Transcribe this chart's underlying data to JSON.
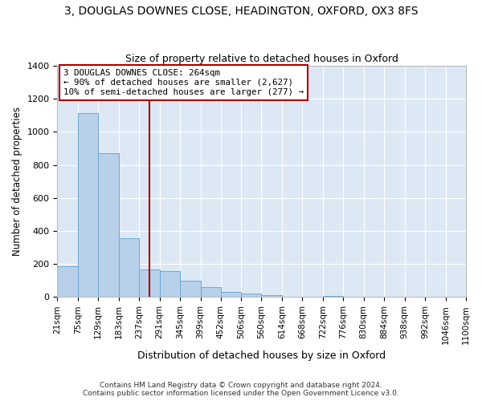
{
  "title": "3, DOUGLAS DOWNES CLOSE, HEADINGTON, OXFORD, OX3 8FS",
  "subtitle": "Size of property relative to detached houses in Oxford",
  "xlabel": "Distribution of detached houses by size in Oxford",
  "ylabel": "Number of detached properties",
  "bar_color": "#b8d0ea",
  "bar_edge_color": "#6aaad4",
  "background_color": "#dce9f5",
  "grid_color": "#ffffff",
  "vline_x": 264,
  "vline_color": "#aa0000",
  "annotation_text": "3 DOUGLAS DOWNES CLOSE: 264sqm\n← 90% of detached houses are smaller (2,627)\n10% of semi-detached houses are larger (277) →",
  "annotation_color": "#aa0000",
  "footer": "Contains HM Land Registry data © Crown copyright and database right 2024.\nContains public sector information licensed under the Open Government Licence v3.0.",
  "bins": [
    21,
    75,
    129,
    183,
    237,
    291,
    345,
    399,
    452,
    506,
    560,
    614,
    668,
    722,
    776,
    830,
    884,
    938,
    992,
    1046,
    1100
  ],
  "bin_labels": [
    "21sqm",
    "75sqm",
    "129sqm",
    "183sqm",
    "237sqm",
    "291sqm",
    "345sqm",
    "399sqm",
    "452sqm",
    "506sqm",
    "560sqm",
    "614sqm",
    "668sqm",
    "722sqm",
    "776sqm",
    "830sqm",
    "884sqm",
    "938sqm",
    "992sqm",
    "1046sqm",
    "1100sqm"
  ],
  "values": [
    185,
    1115,
    870,
    355,
    165,
    155,
    100,
    60,
    30,
    20,
    10,
    0,
    0,
    5,
    0,
    0,
    0,
    0,
    0,
    0
  ],
  "ylim": [
    0,
    1400
  ],
  "yticks": [
    0,
    200,
    400,
    600,
    800,
    1000,
    1200,
    1400
  ]
}
